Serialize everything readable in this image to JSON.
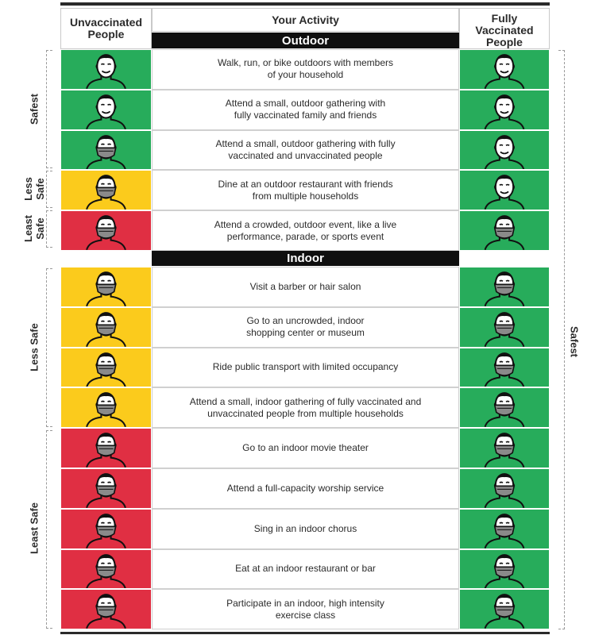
{
  "header": {
    "unvaccinated_line1": "Unvaccinated",
    "unvaccinated_line2": "People",
    "activity": "Your Activity",
    "vaccinated_line1": "Fully",
    "vaccinated_line2": "Vaccinated",
    "vaccinated_line3": "People"
  },
  "sections": {
    "outdoor": "Outdoor",
    "indoor": "Indoor"
  },
  "side_labels": {
    "left_safest": "Safest",
    "left_less_safe_outdoor_1": "Less",
    "left_less_safe_outdoor_2": "Safe",
    "left_least_safe_outdoor_1": "Least",
    "left_least_safe_outdoor_2": "Safe",
    "left_less_safe_indoor": "Less Safe",
    "left_least_safe_indoor": "Least Safe",
    "right_safest": "Safest"
  },
  "colors": {
    "safest": "#27ac5b",
    "less_safe": "#fbcb1c",
    "least_safe": "#e02f43"
  },
  "outdoor_rows": [
    {
      "line1": "Walk, run, or bike outdoors with members",
      "line2": "of your household",
      "unvaccinated_level": "safest",
      "unvaccinated_icon": "face-no-mask-icon",
      "vaccinated_icon": "face-no-mask-icon"
    },
    {
      "line1": "Attend a small, outdoor gathering with",
      "line2": "fully vaccinated family and friends",
      "unvaccinated_level": "safest",
      "unvaccinated_icon": "face-no-mask-icon",
      "vaccinated_icon": "face-no-mask-icon"
    },
    {
      "line1": "Attend a small, outdoor gathering with fully",
      "line2": "vaccinated and unvaccinated people",
      "unvaccinated_level": "safest",
      "unvaccinated_icon": "face-mask-icon",
      "vaccinated_icon": "face-no-mask-icon"
    },
    {
      "line1": "Dine at an outdoor restaurant with friends",
      "line2": "from multiple households",
      "unvaccinated_level": "less_safe",
      "unvaccinated_icon": "face-mask-icon",
      "vaccinated_icon": "face-no-mask-icon"
    },
    {
      "line1": "Attend a crowded, outdoor event, like a live",
      "line2": "performance, parade, or sports event",
      "unvaccinated_level": "least_safe",
      "unvaccinated_icon": "face-mask-icon",
      "vaccinated_icon": "face-mask-icon"
    }
  ],
  "indoor_rows": [
    {
      "line1": "Visit a barber or hair salon",
      "line2": "",
      "unvaccinated_level": "less_safe",
      "unvaccinated_icon": "face-mask-icon",
      "vaccinated_icon": "face-mask-icon"
    },
    {
      "line1": "Go to an uncrowded, indoor",
      "line2": "shopping center or museum",
      "unvaccinated_level": "less_safe",
      "unvaccinated_icon": "face-mask-icon",
      "vaccinated_icon": "face-mask-icon"
    },
    {
      "line1": "Ride public transport with limited occupancy",
      "line2": "",
      "unvaccinated_level": "less_safe",
      "unvaccinated_icon": "face-mask-icon",
      "vaccinated_icon": "face-mask-icon"
    },
    {
      "line1": "Attend a small, indoor gathering of fully vaccinated and",
      "line2": "unvaccinated people from multiple households",
      "unvaccinated_level": "less_safe",
      "unvaccinated_icon": "face-mask-icon",
      "vaccinated_icon": "face-mask-icon"
    },
    {
      "line1": "Go to an indoor movie theater",
      "line2": "",
      "unvaccinated_level": "least_safe",
      "unvaccinated_icon": "face-mask-icon",
      "vaccinated_icon": "face-mask-icon"
    },
    {
      "line1": "Attend a full-capacity worship service",
      "line2": "",
      "unvaccinated_level": "least_safe",
      "unvaccinated_icon": "face-mask-icon",
      "vaccinated_icon": "face-mask-icon"
    },
    {
      "line1": "Sing in an indoor chorus",
      "line2": "",
      "unvaccinated_level": "least_safe",
      "unvaccinated_icon": "face-mask-icon",
      "vaccinated_icon": "face-mask-icon"
    },
    {
      "line1": "Eat at an indoor restaurant or bar",
      "line2": "",
      "unvaccinated_level": "least_safe",
      "unvaccinated_icon": "face-mask-icon",
      "vaccinated_icon": "face-mask-icon"
    },
    {
      "line1": "Participate in an indoor, high intensity",
      "line2": "exercise class",
      "unvaccinated_level": "least_safe",
      "unvaccinated_icon": "face-mask-icon",
      "vaccinated_icon": "face-mask-icon"
    }
  ]
}
